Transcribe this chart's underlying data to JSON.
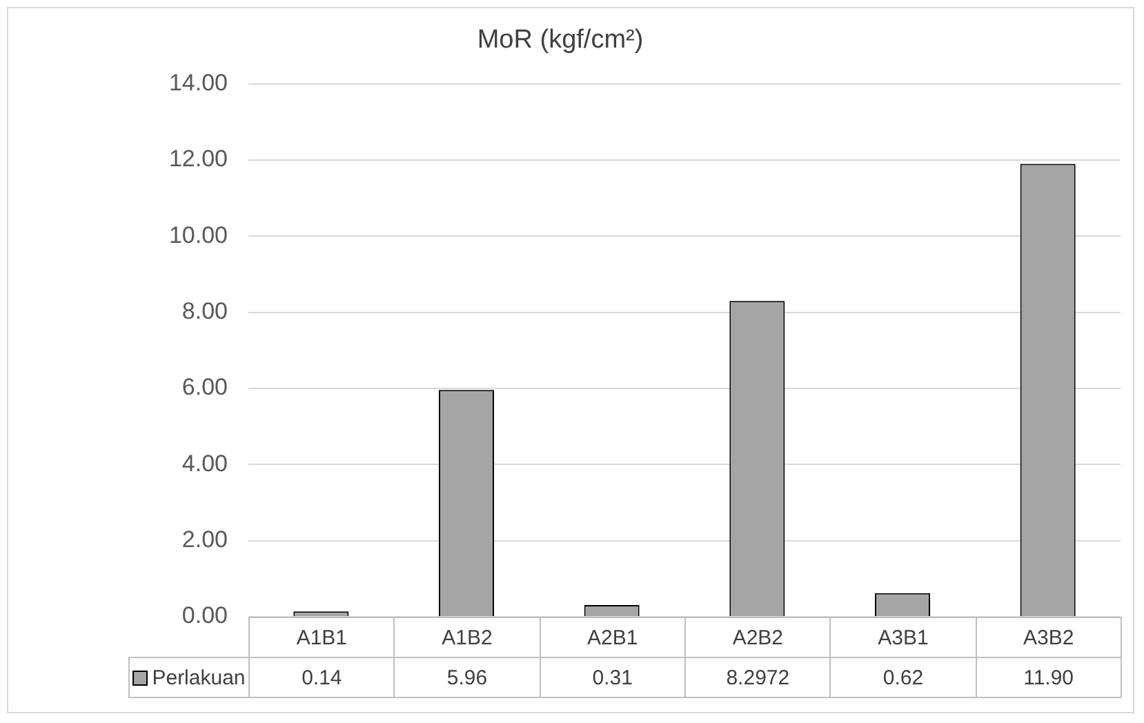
{
  "chart_data": {
    "type": "bar",
    "title": "MoR (kgf/cm²)",
    "categories": [
      "A1B1",
      "A1B2",
      "A2B1",
      "A2B2",
      "A3B1",
      "A3B2"
    ],
    "series": [
      {
        "name": "Perlakuan",
        "color": "#a5a5a5",
        "values": [
          0.14,
          5.96,
          0.31,
          8.2972,
          0.62,
          11.9
        ],
        "value_labels": [
          "0.14",
          "5.96",
          "0.31",
          "8.2972",
          "0.62",
          "11.90"
        ]
      }
    ],
    "ylim": [
      0,
      14
    ],
    "yticks": [
      {
        "value": 0,
        "label": "0.00"
      },
      {
        "value": 2,
        "label": "2.00"
      },
      {
        "value": 4,
        "label": "4.00"
      },
      {
        "value": 6,
        "label": "6.00"
      },
      {
        "value": 8,
        "label": "8.00"
      },
      {
        "value": 10,
        "label": "10.00"
      },
      {
        "value": 12,
        "label": "12.00"
      },
      {
        "value": 14,
        "label": "14.00"
      }
    ],
    "grid": "y"
  }
}
